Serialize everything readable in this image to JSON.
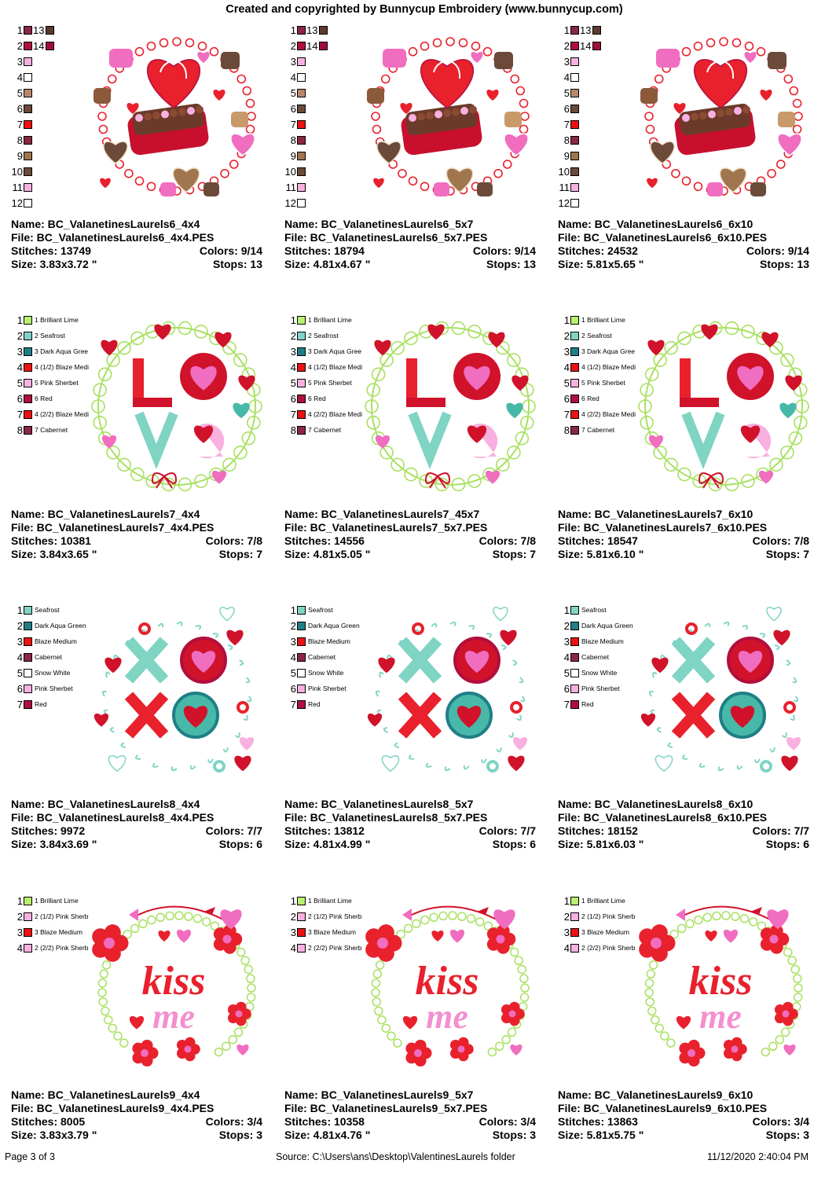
{
  "header": {
    "title": "Created and copyrighted by Bunnycup Embroidery (www.bunnycup.com)"
  },
  "footer": {
    "page": "Page 3 of 3",
    "source": "Source: C:\\Users\\ans\\Desktop\\ValentinesLaurels folder",
    "datetime": "11/12/2020 2:40:04 PM"
  },
  "cells": [
    {
      "name": "Name: BC_ValanetinesLaurels6_4x4",
      "file": "File: BC_ValanetinesLaurels6_4x4.PES",
      "stitches": "Stitches: 13749",
      "colors": "Colors: 9/14",
      "size": "Size: 3.83x3.72 \"",
      "stops": "Stops: 13"
    },
    {
      "name": "Name: BC_ValanetinesLaurels6_5x7",
      "file": "File: BC_ValanetinesLaurels6_5x7.PES",
      "stitches": "Stitches: 18794",
      "colors": "Colors: 9/14",
      "size": "Size: 4.81x4.67 \"",
      "stops": "Stops: 13"
    },
    {
      "name": "Name: BC_ValanetinesLaurels6_6x10",
      "file": "File: BC_ValanetinesLaurels6_6x10.PES",
      "stitches": "Stitches: 24532",
      "colors": "Colors: 9/14",
      "size": "Size: 5.81x5.65 \"",
      "stops": "Stops: 13"
    },
    {
      "name": "Name: BC_ValanetinesLaurels7_4x4",
      "file": "File: BC_ValanetinesLaurels7_4x4.PES",
      "stitches": "Stitches: 10381",
      "colors": "Colors: 7/8",
      "size": "Size: 3.84x3.65 \"",
      "stops": "Stops: 7"
    },
    {
      "name": "Name: BC_ValanetinesLaurels7_45x7",
      "file": "File: BC_ValanetinesLaurels7_5x7.PES",
      "stitches": "Stitches: 14556",
      "colors": "Colors: 7/8",
      "size": "Size: 4.81x5.05 \"",
      "stops": "Stops: 7"
    },
    {
      "name": "Name: BC_ValanetinesLaurels7_6x10",
      "file": "File: BC_ValanetinesLaurels7_6x10.PES",
      "stitches": "Stitches: 18547",
      "colors": "Colors: 7/8",
      "size": "Size: 5.81x6.10 \"",
      "stops": "Stops: 7"
    },
    {
      "name": "Name: BC_ValanetinesLaurels8_4x4",
      "file": "File: BC_ValanetinesLaurels8_4x4.PES",
      "stitches": "Stitches: 9972",
      "colors": "Colors: 7/7",
      "size": "Size: 3.84x3.69 \"",
      "stops": "Stops: 6"
    },
    {
      "name": "Name: BC_ValanetinesLaurels8_5x7",
      "file": "File: BC_ValanetinesLaurels8_5x7.PES",
      "stitches": "Stitches: 13812",
      "colors": "Colors: 7/7",
      "size": "Size: 4.81x4.99 \"",
      "stops": "Stops: 6"
    },
    {
      "name": "Name: BC_ValanetinesLaurels8_6x10",
      "file": "File: BC_ValanetinesLaurels8_6x10.PES",
      "stitches": "Stitches: 18152",
      "colors": "Colors: 7/7",
      "size": "Size: 5.81x6.03 \"",
      "stops": "Stops: 6"
    },
    {
      "name": "Name: BC_ValanetinesLaurels9_4x4",
      "file": "File: BC_ValanetinesLaurels9_4x4.PES",
      "stitches": "Stitches: 8005",
      "colors": "Colors: 3/4",
      "size": "Size: 3.83x3.79 \"",
      "stops": "Stops: 3"
    },
    {
      "name": "Name: BC_ValanetinesLaurels9_5x7",
      "file": "File: BC_ValanetinesLaurels9_5x7.PES",
      "stitches": "Stitches: 10358",
      "colors": "Colors: 3/4",
      "size": "Size: 4.81x4.76 \"",
      "stops": "Stops: 3"
    },
    {
      "name": "Name: BC_ValanetinesLaurels9_6x10",
      "file": "File: BC_ValanetinesLaurels9_6x10.PES",
      "stitches": "Stitches: 13863",
      "colors": "Colors: 3/4",
      "size": "Size: 5.81x5.75 \"",
      "stops": "Stops: 3"
    }
  ],
  "legends": {
    "set6": [
      {
        "num": "1",
        "color": "#8b2743",
        "num2": "13",
        "color2": "#5c3a2e"
      },
      {
        "num": "2",
        "color": "#b00f3e",
        "num2": "14",
        "color2": "#a00d3a"
      },
      {
        "num": "3",
        "color": "#f8b0e0"
      },
      {
        "num": "4",
        "color": "#ffffff"
      },
      {
        "num": "5",
        "color": "#b8876a"
      },
      {
        "num": "6",
        "color": "#6b4a3a"
      },
      {
        "num": "7",
        "color": "#ee1111"
      },
      {
        "num": "8",
        "color": "#8b2743"
      },
      {
        "num": "9",
        "color": "#a0764e"
      },
      {
        "num": "10",
        "color": "#6b4a3a"
      },
      {
        "num": "11",
        "color": "#f8b0e0"
      },
      {
        "num": "12",
        "color": "#ffffff"
      }
    ],
    "set7": [
      {
        "num": "1",
        "color": "#b8f070",
        "name": "1 Brilliant Lime"
      },
      {
        "num": "2",
        "color": "#7fd4c4",
        "name": "2 Seafrost"
      },
      {
        "num": "3",
        "color": "#1f7f86",
        "name": "3 Dark Aqua Gree"
      },
      {
        "num": "4",
        "color": "#ee1111",
        "name": "4 (1/2) Blaze Medi"
      },
      {
        "num": "5",
        "color": "#f8b0e0",
        "name": "5 Pink Sherbet"
      },
      {
        "num": "6",
        "color": "#b00f3e",
        "name": "6 Red"
      },
      {
        "num": "7",
        "color": "#ee1111",
        "name": "4 (2/2) Blaze Medi"
      },
      {
        "num": "8",
        "color": "#8b2743",
        "name": "7 Cabernet"
      }
    ],
    "set8": [
      {
        "num": "1",
        "color": "#7fd4c4",
        "name": "Seafrost"
      },
      {
        "num": "2",
        "color": "#1f7f86",
        "name": "Dark Aqua Green"
      },
      {
        "num": "3",
        "color": "#ee1111",
        "name": "Blaze Medium"
      },
      {
        "num": "4",
        "color": "#8b2743",
        "name": "Cabernet"
      },
      {
        "num": "5",
        "color": "#ffffff",
        "name": "Snow White"
      },
      {
        "num": "6",
        "color": "#f8b0e0",
        "name": "Pink Sherbet"
      },
      {
        "num": "7",
        "color": "#b00f3e",
        "name": "Red"
      }
    ],
    "set9": [
      {
        "num": "1",
        "color": "#b8f070",
        "name": "1 Brilliant Lime"
      },
      {
        "num": "2",
        "color": "#f8b0e0",
        "name": "2 (1/2) Pink Sherb"
      },
      {
        "num": "3",
        "color": "#ee1111",
        "name": "3 Blaze Medium"
      },
      {
        "num": "4",
        "color": "#f8b0e0",
        "name": "2 (2/2) Pink Sherb"
      }
    ]
  }
}
